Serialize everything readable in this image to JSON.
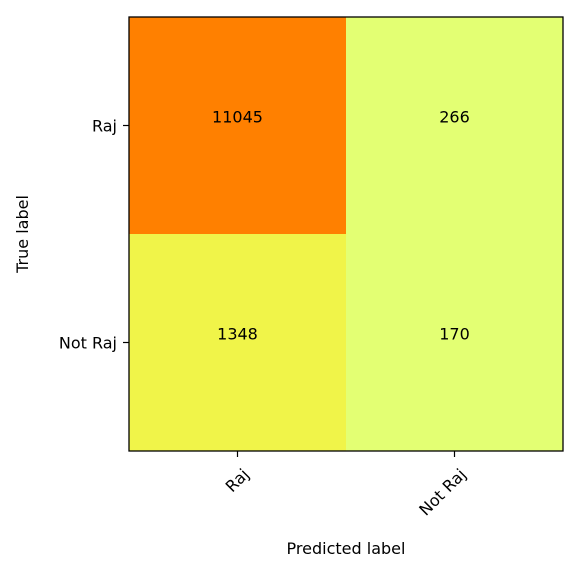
{
  "chart_data": {
    "type": "heatmap",
    "title": "",
    "xlabel": "Predicted label",
    "ylabel": "True label",
    "x_categories": [
      "Raj",
      "Not Raj"
    ],
    "y_categories": [
      "Raj",
      "Not Raj"
    ],
    "values": [
      [
        11045,
        266
      ],
      [
        1348,
        170
      ]
    ],
    "cell_colors": [
      [
        "#ff8000",
        "#e3ff73"
      ],
      [
        "#f0f449",
        "#e3ff73"
      ]
    ],
    "colormap": "Wistia",
    "grid": false,
    "legend": "none"
  }
}
